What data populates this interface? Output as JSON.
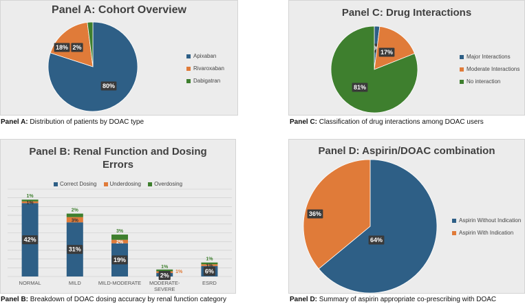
{
  "colors": {
    "blue": "#2e5f86",
    "orange": "#e07b39",
    "green": "#3e7f2e",
    "grid": "#c8c8c8",
    "label_bg": "#3a3a3a"
  },
  "captions": {
    "a_bold": "Panel A:",
    "a_text": " Distribution of patients by DOAC type",
    "b_bold": "Panel B:",
    "b_text": " Breakdown of DOAC dosing accuracy by renal function category",
    "c_bold": "Panel C:",
    "c_text": " Classification of drug interactions among DOAC users",
    "d_bold": "Panel D:",
    "d_text": " Summary of aspirin appropriate co-prescribing with DOAC"
  },
  "chart_data": [
    {
      "id": "A",
      "type": "pie",
      "title": "Panel A: Cohort Overview",
      "slices": [
        {
          "label": "Apixaban",
          "value": 80,
          "text": "80%",
          "color": "#2e5f86"
        },
        {
          "label": "Rivaroxaban",
          "value": 18,
          "text": "18%",
          "color": "#e07b39"
        },
        {
          "label": "Dabigatran",
          "value": 2,
          "text": "2%",
          "color": "#3e7f2e"
        }
      ],
      "legend": "right"
    },
    {
      "id": "B",
      "type": "bar",
      "stacked": true,
      "title": "Panel B: Renal Function and Dosing Errors",
      "categories": [
        "NORMAL",
        "MILD",
        "MILD-MODERATE",
        "MODERATE-SEVERE",
        "ESRD"
      ],
      "series": [
        {
          "name": "Correct Dosing",
          "color": "#2e5f86",
          "values": [
            42,
            31,
            19,
            2,
            6
          ],
          "labels": [
            "42%",
            "31%",
            "19%",
            "2%",
            "6%"
          ]
        },
        {
          "name": "Underdosing",
          "color": "#e07b39",
          "values": [
            1,
            3,
            2,
            1,
            1
          ],
          "labels": [
            "1%",
            "3%",
            "2%",
            "1%",
            "1%"
          ]
        },
        {
          "name": "Overdosing",
          "color": "#3e7f2e",
          "values": [
            1,
            2,
            3,
            1,
            1
          ],
          "labels": [
            "1%",
            "2%",
            "3%",
            "1%",
            "1%"
          ]
        }
      ],
      "ylim": [
        0,
        50
      ],
      "grid": true,
      "legend": "top"
    },
    {
      "id": "C",
      "type": "pie",
      "title": "Panel C: Drug Interactions",
      "slices": [
        {
          "label": "Major Interactions",
          "value": 2,
          "text": "2%",
          "color": "#2e5f86"
        },
        {
          "label": "Moderate Interactions",
          "value": 17,
          "text": "17%",
          "color": "#e07b39"
        },
        {
          "label": "No interaction",
          "value": 81,
          "text": "81%",
          "color": "#3e7f2e"
        }
      ],
      "legend": "right"
    },
    {
      "id": "D",
      "type": "pie",
      "title": "Panel D: Aspirin/DOAC combination",
      "slices": [
        {
          "label": "Aspirin Without Indication",
          "value": 64,
          "text": "64%",
          "color": "#2e5f86"
        },
        {
          "label": "Aspirin With Indication",
          "value": 36,
          "text": "36%",
          "color": "#e07b39"
        }
      ],
      "legend": "right"
    }
  ]
}
